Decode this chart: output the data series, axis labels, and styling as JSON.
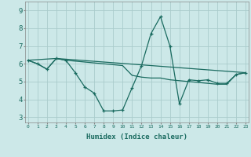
{
  "title": "",
  "xlabel": "Humidex (Indice chaleur)",
  "ylabel": "",
  "bg_color": "#cce8e8",
  "grid_color": "#aacccc",
  "line_color": "#1a6b60",
  "x_ticks": [
    0,
    1,
    2,
    3,
    4,
    5,
    6,
    7,
    8,
    9,
    10,
    11,
    12,
    13,
    14,
    15,
    16,
    17,
    18,
    19,
    20,
    21,
    22,
    23
  ],
  "y_ticks": [
    3,
    4,
    5,
    6,
    7,
    8,
    9
  ],
  "xlim": [
    -0.3,
    23.3
  ],
  "ylim": [
    2.7,
    9.5
  ],
  "line1_x": [
    0,
    1,
    2,
    3,
    4,
    5,
    6,
    7,
    8,
    9,
    10,
    11,
    12,
    13,
    14,
    15,
    16,
    17,
    18,
    19,
    20,
    21,
    22,
    23
  ],
  "line1_y": [
    6.2,
    6.0,
    5.7,
    6.3,
    6.2,
    5.5,
    4.7,
    4.35,
    3.35,
    3.35,
    3.4,
    4.65,
    5.9,
    7.7,
    8.65,
    7.0,
    3.75,
    5.1,
    5.05,
    5.1,
    4.9,
    4.9,
    5.4,
    5.5
  ],
  "line2_x": [
    0,
    1,
    2,
    3,
    23
  ],
  "line2_y": [
    6.2,
    6.0,
    5.7,
    6.3,
    5.5
  ],
  "line3_x": [
    0,
    3,
    4,
    10,
    11,
    12,
    13,
    14,
    15,
    16,
    17,
    18,
    19,
    20,
    21,
    22,
    23
  ],
  "line3_y": [
    6.2,
    6.3,
    6.2,
    5.9,
    5.35,
    5.25,
    5.2,
    5.2,
    5.1,
    5.05,
    5.0,
    4.95,
    4.9,
    4.85,
    4.85,
    5.4,
    5.5
  ]
}
